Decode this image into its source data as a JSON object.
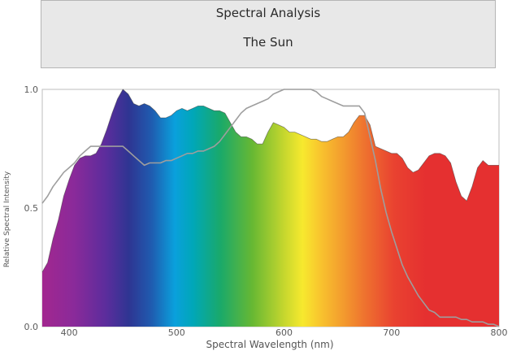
{
  "header": {
    "title": "Spectral Analysis",
    "subtitle": "The Sun"
  },
  "chart_data": {
    "type": "area",
    "title": "Spectral Analysis",
    "subtitle": "The Sun",
    "xlabel": "Spectral Wavelength (nm)",
    "ylabel": "Relative Spectral Intensity",
    "xlim": [
      375,
      800
    ],
    "ylim": [
      0,
      1.0
    ],
    "x_ticks": [
      "400",
      "500",
      "600",
      "700",
      "800"
    ],
    "y_ticks": [
      "0.0",
      "0.5",
      "1.0"
    ],
    "grid": false,
    "spectrum_fill": true,
    "series": [
      {
        "color": "#e53030",
        "fill": "visible-spectrum-gradient",
        "x": [
          375,
          380,
          385,
          390,
          395,
          400,
          405,
          410,
          415,
          420,
          425,
          430,
          435,
          440,
          445,
          450,
          455,
          460,
          465,
          470,
          475,
          480,
          485,
          490,
          495,
          500,
          505,
          510,
          515,
          520,
          525,
          530,
          535,
          540,
          545,
          550,
          555,
          560,
          565,
          570,
          575,
          580,
          585,
          590,
          595,
          600,
          605,
          610,
          615,
          620,
          625,
          630,
          635,
          640,
          645,
          650,
          655,
          660,
          665,
          670,
          675,
          680,
          685,
          690,
          695,
          700,
          705,
          710,
          715,
          720,
          725,
          730,
          735,
          740,
          745,
          750,
          755,
          760,
          765,
          770,
          775,
          780,
          785,
          790,
          795,
          800
        ],
        "y": [
          0.23,
          0.27,
          0.37,
          0.45,
          0.55,
          0.62,
          0.68,
          0.71,
          0.72,
          0.72,
          0.73,
          0.77,
          0.83,
          0.9,
          0.96,
          1.0,
          0.98,
          0.94,
          0.93,
          0.94,
          0.93,
          0.91,
          0.88,
          0.88,
          0.89,
          0.91,
          0.92,
          0.91,
          0.92,
          0.93,
          0.93,
          0.92,
          0.91,
          0.91,
          0.9,
          0.86,
          0.82,
          0.8,
          0.8,
          0.79,
          0.77,
          0.77,
          0.82,
          0.86,
          0.85,
          0.84,
          0.82,
          0.82,
          0.81,
          0.8,
          0.79,
          0.79,
          0.78,
          0.78,
          0.79,
          0.8,
          0.8,
          0.82,
          0.86,
          0.89,
          0.89,
          0.85,
          0.76,
          0.75,
          0.74,
          0.73,
          0.73,
          0.71,
          0.67,
          0.65,
          0.66,
          0.69,
          0.72,
          0.73,
          0.73,
          0.72,
          0.69,
          0.61,
          0.55,
          0.53,
          0.59,
          0.67,
          0.7,
          0.68,
          0.68,
          0.68
        ]
      },
      {
        "color": "#9e9e9e",
        "fill": "none",
        "x": [
          375,
          380,
          385,
          390,
          395,
          400,
          405,
          410,
          415,
          420,
          425,
          430,
          435,
          440,
          445,
          450,
          455,
          460,
          465,
          470,
          475,
          480,
          485,
          490,
          495,
          500,
          505,
          510,
          515,
          520,
          525,
          530,
          535,
          540,
          545,
          550,
          555,
          560,
          565,
          570,
          575,
          580,
          585,
          590,
          595,
          600,
          605,
          610,
          615,
          620,
          625,
          630,
          635,
          640,
          645,
          650,
          655,
          660,
          665,
          670,
          675,
          680,
          685,
          690,
          695,
          700,
          705,
          710,
          715,
          720,
          725,
          730,
          735,
          740,
          745,
          750,
          755,
          760,
          765,
          770,
          775,
          780,
          785,
          790,
          795,
          800
        ],
        "y": [
          0.52,
          0.55,
          0.59,
          0.62,
          0.65,
          0.67,
          0.69,
          0.72,
          0.74,
          0.76,
          0.76,
          0.76,
          0.76,
          0.76,
          0.76,
          0.76,
          0.74,
          0.72,
          0.7,
          0.68,
          0.69,
          0.69,
          0.69,
          0.7,
          0.7,
          0.71,
          0.72,
          0.73,
          0.73,
          0.74,
          0.74,
          0.75,
          0.76,
          0.78,
          0.81,
          0.84,
          0.87,
          0.9,
          0.92,
          0.93,
          0.94,
          0.95,
          0.96,
          0.98,
          0.99,
          1.0,
          1.0,
          1.0,
          1.0,
          1.0,
          1.0,
          0.99,
          0.97,
          0.96,
          0.95,
          0.94,
          0.93,
          0.93,
          0.93,
          0.93,
          0.9,
          0.8,
          0.7,
          0.58,
          0.48,
          0.4,
          0.33,
          0.26,
          0.21,
          0.17,
          0.13,
          0.1,
          0.07,
          0.06,
          0.04,
          0.04,
          0.04,
          0.04,
          0.03,
          0.03,
          0.02,
          0.02,
          0.02,
          0.01,
          0.01,
          0.0
        ]
      }
    ]
  }
}
